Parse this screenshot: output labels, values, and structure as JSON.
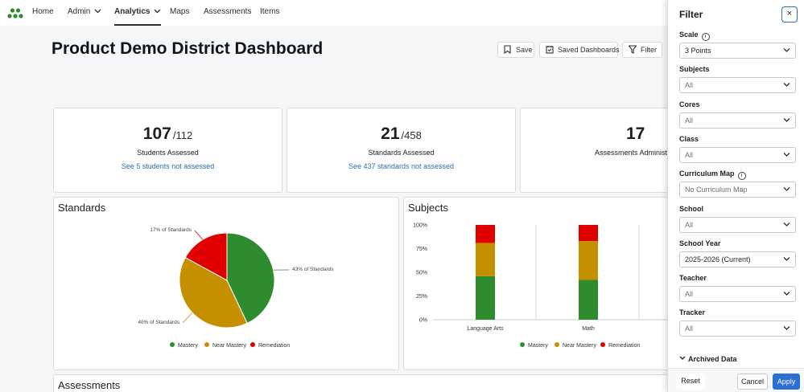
{
  "nav": {
    "home": "Home",
    "admin": "Admin",
    "analytics": "Analytics",
    "maps": "Maps",
    "assessments": "Assessments",
    "items": "Items"
  },
  "page": {
    "title": "Product Demo District Dashboard"
  },
  "toolbar": {
    "save": "Save",
    "saved_dashboards": "Saved Dashboards",
    "filter": "Filter"
  },
  "kpis": [
    {
      "value": "107",
      "total": "/112",
      "label": "Students Assessed",
      "link": "See 5 students not assessed"
    },
    {
      "value": "21",
      "total": "/458",
      "label": "Standards Assessed",
      "link": "See 437 standards not assessed"
    },
    {
      "value": "17",
      "label": "Assessments Administered"
    }
  ],
  "standards_panel": {
    "title": "Standards"
  },
  "subjects_panel": {
    "title": "Subjects"
  },
  "assessments_panel": {
    "title": "Assessments"
  },
  "colors": {
    "mastery": "#2e8b2e",
    "near_mastery": "#c49000",
    "remediation": "#e00000"
  },
  "chart_data": [
    {
      "type": "pie",
      "title": "Standards",
      "slices": [
        {
          "name": "Mastery",
          "value": 43,
          "label": "43% of Standards"
        },
        {
          "name": "Near Mastery",
          "value": 40,
          "label": "40% of Standards"
        },
        {
          "name": "Remediation",
          "value": 17,
          "label": "17% of Standards"
        }
      ],
      "legend": [
        "Mastery",
        "Near Mastery",
        "Remediation"
      ]
    },
    {
      "type": "bar",
      "stacked": true,
      "title": "Subjects",
      "categories": [
        "Language Arts",
        "Math"
      ],
      "series": [
        {
          "name": "Mastery",
          "values": [
            46,
            42
          ]
        },
        {
          "name": "Near Mastery",
          "values": [
            35,
            41
          ]
        },
        {
          "name": "Remediation",
          "values": [
            19,
            17
          ]
        }
      ],
      "y_ticks": [
        "0%",
        "25%",
        "50%",
        "75%",
        "100%"
      ],
      "ylim": [
        0,
        100
      ],
      "legend": [
        "Mastery",
        "Near Mastery",
        "Remediation"
      ]
    }
  ],
  "filter_panel": {
    "title": "Filter",
    "close": "×",
    "fields": [
      {
        "label": "Scale",
        "value": "3 Points",
        "info": "i"
      },
      {
        "label": "Subjects",
        "value": "All"
      },
      {
        "label": "Cores",
        "value": "All"
      },
      {
        "label": "Class",
        "value": "All"
      },
      {
        "label": "Curriculum Map",
        "value": "No Curriculum Map",
        "info": "i"
      },
      {
        "label": "School",
        "value": "All"
      },
      {
        "label": "School Year",
        "value": "2025-2026 (Current)"
      },
      {
        "label": "Teacher",
        "value": "All"
      },
      {
        "label": "Tracker",
        "value": "All"
      }
    ],
    "archived": "Archived Data",
    "reset": "Reset",
    "cancel": "Cancel",
    "apply": "Apply"
  }
}
